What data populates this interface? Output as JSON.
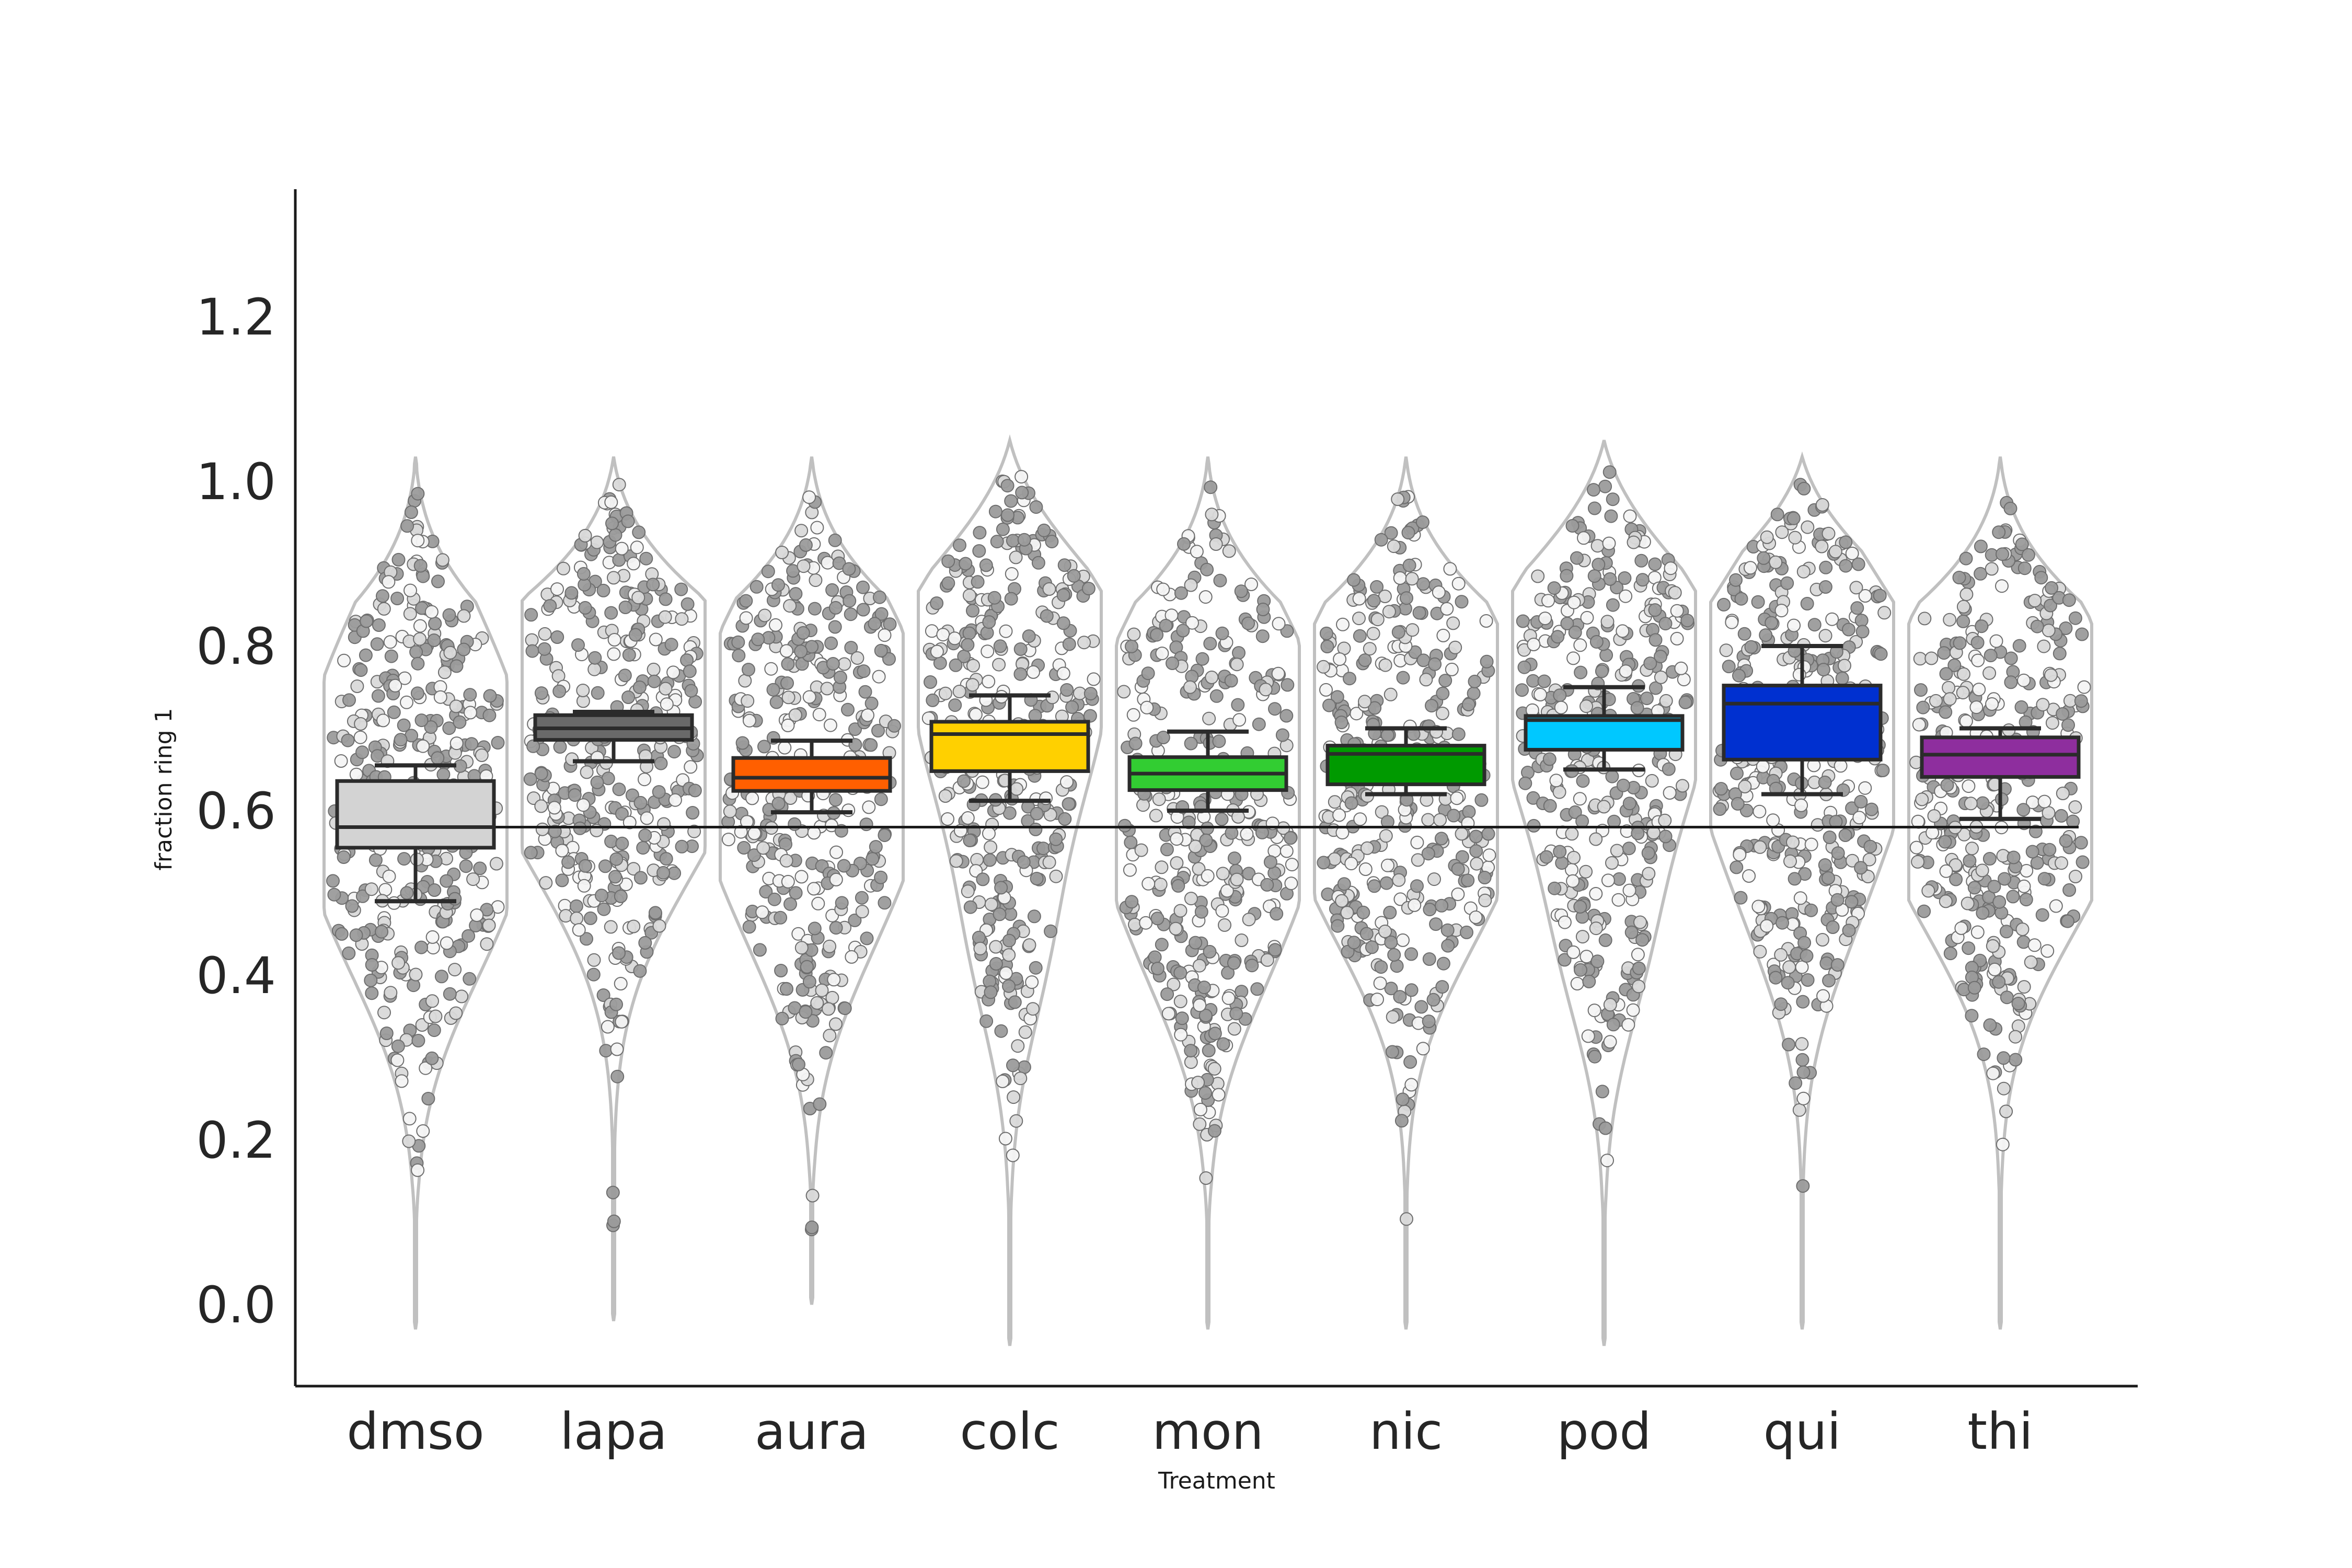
{
  "chart_data": {
    "type": "box",
    "overlays": [
      "violin",
      "swarm"
    ],
    "xlabel": "Treatment",
    "ylabel": "fraction ring 1",
    "ylim": [
      -0.1,
      1.35
    ],
    "yticks": [
      0.0,
      0.2,
      0.4,
      0.6,
      0.8,
      1.0,
      1.2
    ],
    "ytick_labels": [
      "0.0",
      "0.2",
      "0.4",
      "0.6",
      "0.8",
      "1.0",
      "1.2"
    ],
    "reference_line": 0.58,
    "grid": false,
    "categories": [
      "dmso",
      "lapa",
      "aura",
      "colc",
      "mon",
      "nic",
      "pod",
      "qui",
      "thi"
    ],
    "colors": [
      "#d3d3d3",
      "#696969",
      "#ff5f00",
      "#ffd000",
      "#32cd32",
      "#009a00",
      "#00c8ff",
      "#0030d0",
      "#8e2e9e"
    ],
    "boxes": [
      {
        "q1": 0.555,
        "median": 0.58,
        "q3": 0.636,
        "whisker_low": 0.49,
        "whisker_high": 0.655
      },
      {
        "q1": 0.686,
        "median": 0.7,
        "q3": 0.716,
        "whisker_low": 0.66,
        "whisker_high": 0.72
      },
      {
        "q1": 0.624,
        "median": 0.64,
        "q3": 0.664,
        "whisker_low": 0.598,
        "whisker_high": 0.685
      },
      {
        "q1": 0.648,
        "median": 0.693,
        "q3": 0.708,
        "whisker_low": 0.612,
        "whisker_high": 0.74
      },
      {
        "q1": 0.625,
        "median": 0.645,
        "q3": 0.665,
        "whisker_low": 0.6,
        "whisker_high": 0.696
      },
      {
        "q1": 0.632,
        "median": 0.669,
        "q3": 0.679,
        "whisker_low": 0.62,
        "whisker_high": 0.7
      },
      {
        "q1": 0.674,
        "median": 0.71,
        "q3": 0.715,
        "whisker_low": 0.65,
        "whisker_high": 0.75
      },
      {
        "q1": 0.662,
        "median": 0.73,
        "q3": 0.752,
        "whisker_low": 0.62,
        "whisker_high": 0.8
      },
      {
        "q1": 0.641,
        "median": 0.668,
        "q3": 0.689,
        "whisker_low": 0.59,
        "whisker_high": 0.7
      }
    ],
    "violins": [
      {
        "min": -0.03,
        "max": 1.03,
        "peaks": [
          [
            0.62,
            0.9
          ],
          [
            0.45,
            0.55
          ],
          [
            0.8,
            0.55
          ]
        ],
        "dense_top": false
      },
      {
        "min": -0.02,
        "max": 1.03,
        "peaks": [
          [
            0.7,
            1.0
          ],
          [
            0.55,
            0.5
          ],
          [
            0.85,
            0.55
          ]
        ],
        "dense_top": false
      },
      {
        "min": 0.0,
        "max": 1.03,
        "peaks": [
          [
            0.66,
            0.9
          ],
          [
            0.48,
            0.55
          ],
          [
            0.82,
            0.6
          ]
        ],
        "dense_top": false
      },
      {
        "min": -0.05,
        "max": 1.05,
        "peaks": [
          [
            0.7,
            0.75
          ],
          [
            0.9,
            0.8
          ],
          [
            0.45,
            0.4
          ]
        ],
        "dense_top": true
      },
      {
        "min": -0.03,
        "max": 1.03,
        "peaks": [
          [
            0.65,
            1.0
          ],
          [
            0.45,
            0.6
          ],
          [
            0.82,
            0.55
          ]
        ],
        "dense_top": false
      },
      {
        "min": -0.03,
        "max": 1.03,
        "peaks": [
          [
            0.66,
            0.85
          ],
          [
            0.5,
            0.65
          ],
          [
            0.82,
            0.65
          ]
        ],
        "dense_top": false
      },
      {
        "min": -0.05,
        "max": 1.05,
        "peaks": [
          [
            0.7,
            0.9
          ],
          [
            0.9,
            0.75
          ],
          [
            0.45,
            0.45
          ]
        ],
        "dense_top": true
      },
      {
        "min": -0.03,
        "max": 1.03,
        "peaks": [
          [
            0.7,
            0.9
          ],
          [
            0.88,
            0.85
          ],
          [
            0.5,
            0.5
          ]
        ],
        "dense_top": false
      },
      {
        "min": -0.03,
        "max": 1.03,
        "peaks": [
          [
            0.66,
            1.0
          ],
          [
            0.5,
            0.6
          ],
          [
            0.82,
            0.6
          ]
        ],
        "dense_top": false
      }
    ]
  }
}
